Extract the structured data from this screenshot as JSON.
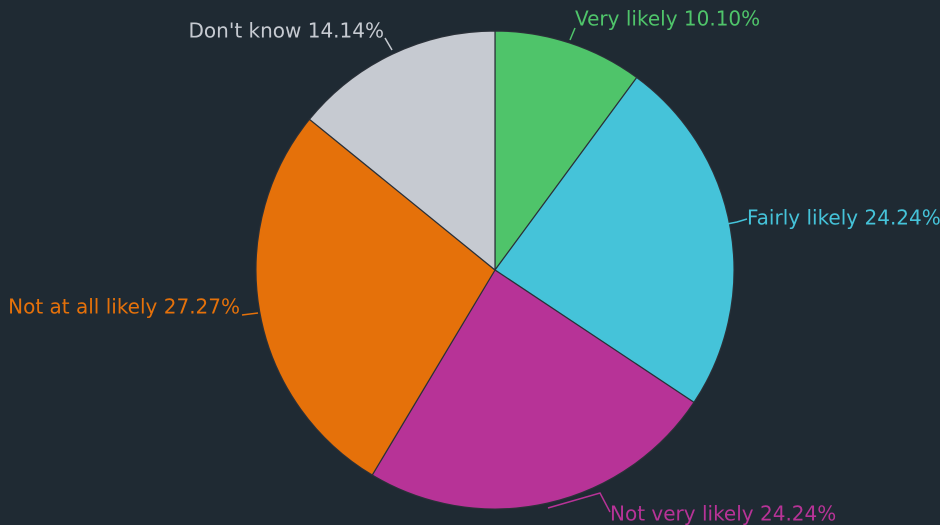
{
  "chart_data": {
    "type": "pie",
    "title": "",
    "start_angle_deg": 0,
    "direction": "clockwise",
    "slices": [
      {
        "label": "Very likely",
        "value": 10.1,
        "value_text": "10.10%",
        "color": "#4fc46a"
      },
      {
        "label": "Fairly likely",
        "value": 24.24,
        "value_text": "24.24%",
        "color": "#45c3d9"
      },
      {
        "label": "Not very likely",
        "value": 24.24,
        "value_text": "24.24%",
        "color": "#b73397"
      },
      {
        "label": "Not at all likely",
        "value": 27.27,
        "value_text": "27.27%",
        "color": "#e5710a"
      },
      {
        "label": "Don't know",
        "value": 14.14,
        "value_text": "14.14%",
        "color": "#c6cad1"
      }
    ]
  },
  "colors": {
    "background": "#1f2a33",
    "slice_border": "#2a3038"
  }
}
